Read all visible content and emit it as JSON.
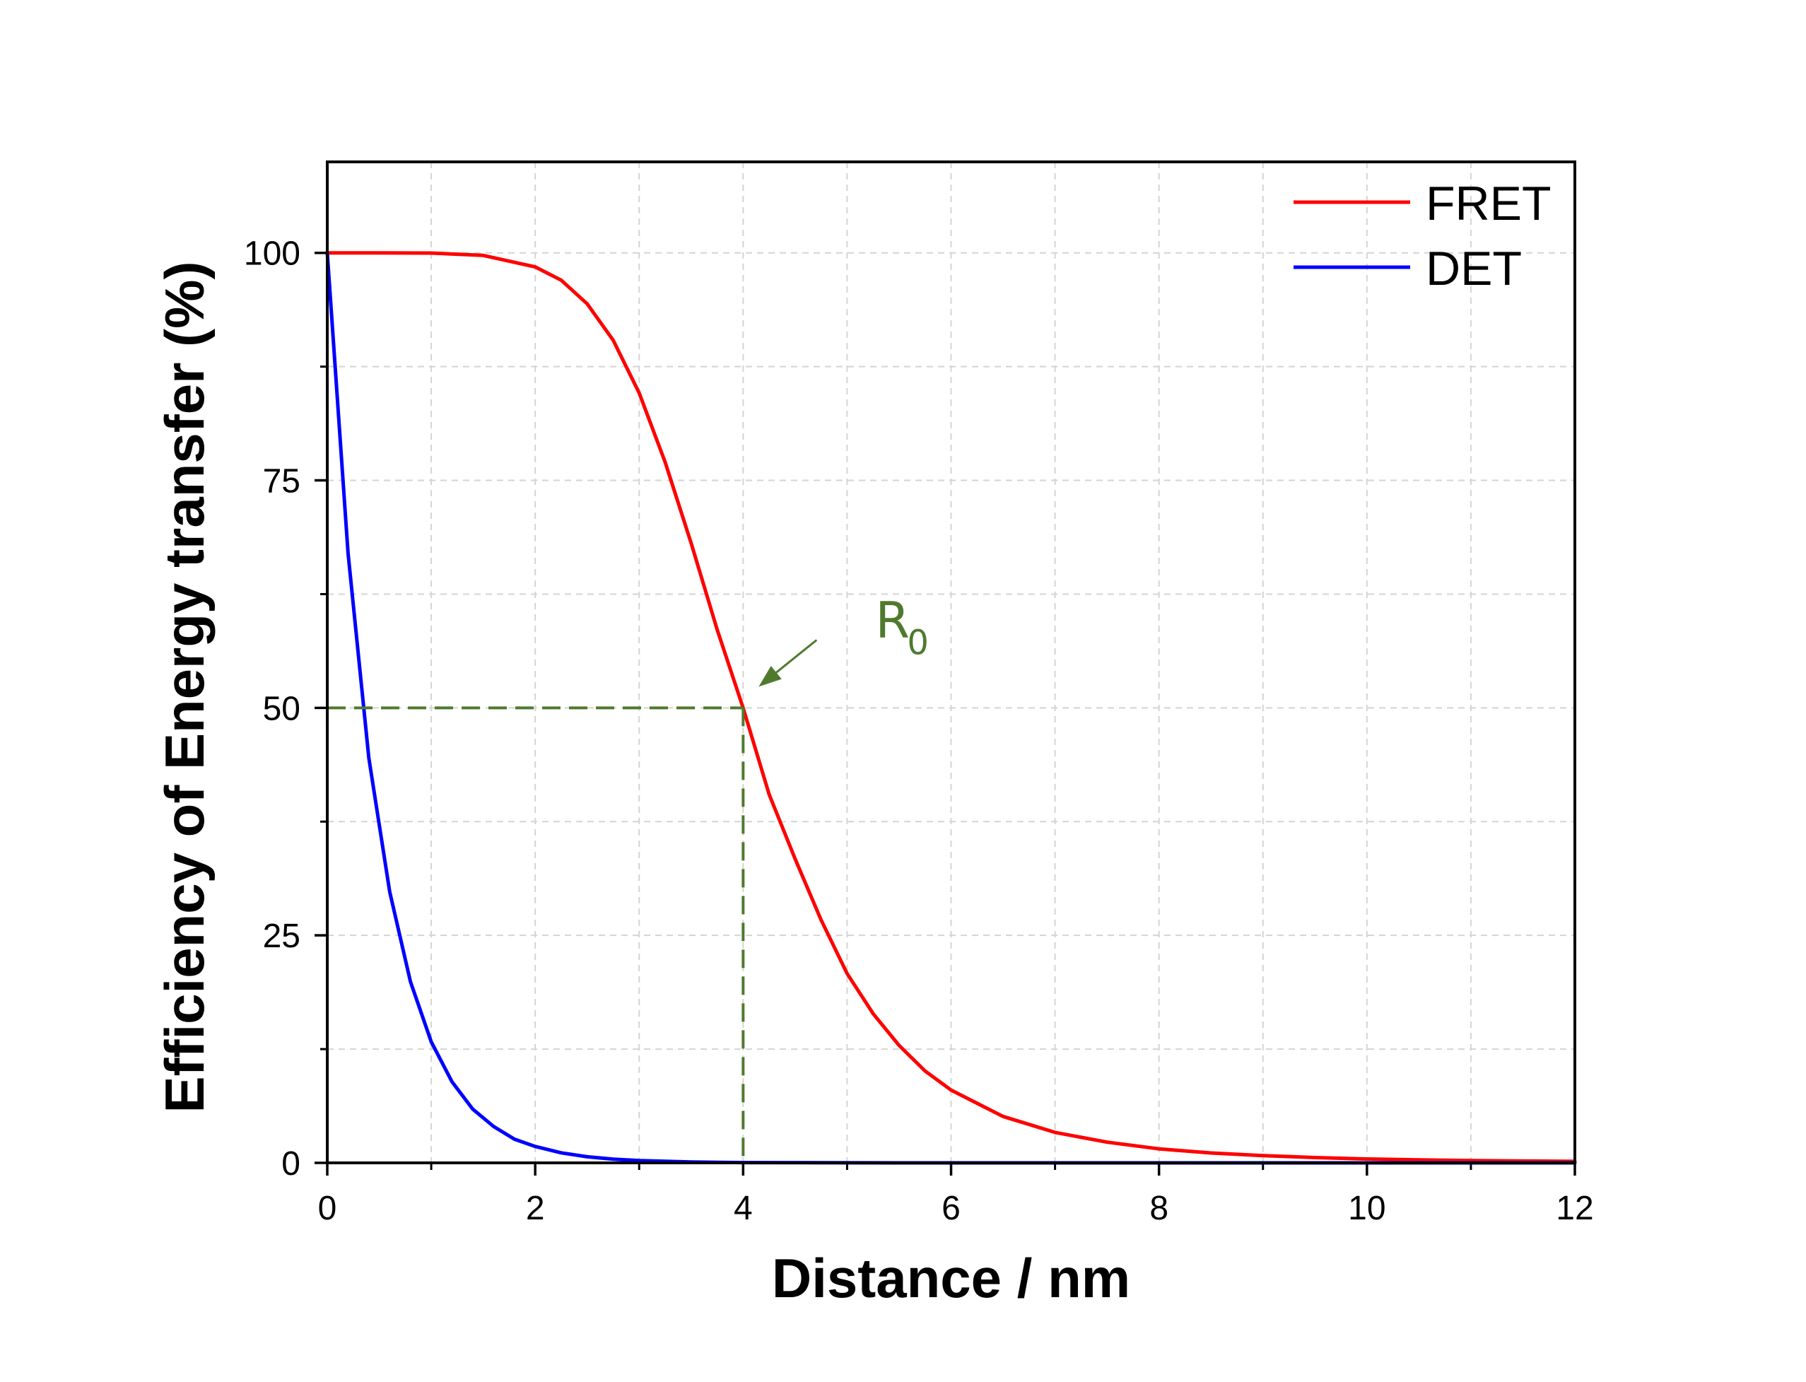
{
  "chart_data": {
    "type": "line",
    "xlabel": "Distance / nm",
    "ylabel": "Efficiency of Energy transfer (%)",
    "xlim": [
      0,
      12
    ],
    "ylim": [
      0,
      110
    ],
    "x_ticks": [
      0,
      2,
      4,
      6,
      8,
      10,
      12
    ],
    "x_tick_labels": [
      "0",
      "2",
      "4",
      "6",
      "8",
      "10",
      "12"
    ],
    "y_ticks": [
      0,
      25,
      50,
      75,
      100
    ],
    "y_tick_labels": [
      "0",
      "25",
      "50",
      "75",
      "100"
    ],
    "x_minor_ticks": [
      1,
      3,
      5,
      7,
      9,
      11
    ],
    "y_minor_ticks": [
      12.5,
      37.5,
      62.5,
      87.5
    ],
    "grid": true,
    "legend": "top-right",
    "series": [
      {
        "name": "FRET",
        "color": "#ff0000",
        "x": [
          0,
          0.5,
          1.0,
          1.5,
          2.0,
          2.25,
          2.5,
          2.75,
          3.0,
          3.25,
          3.5,
          3.75,
          4.0,
          4.25,
          4.5,
          4.75,
          5.0,
          5.25,
          5.5,
          5.75,
          6.0,
          6.5,
          7.0,
          7.5,
          8.0,
          8.5,
          9.0,
          9.5,
          10.0,
          10.5,
          11.0,
          11.5,
          12.0
        ],
        "y": [
          100,
          100,
          99.98,
          99.72,
          98.46,
          97.0,
          94.4,
          90.4,
          84.6,
          77.0,
          68.1,
          58.6,
          50.0,
          40.5,
          33.4,
          26.7,
          20.8,
          16.4,
          12.9,
          10.1,
          8.0,
          5.1,
          3.35,
          2.28,
          1.54,
          1.09,
          0.79,
          0.58,
          0.43,
          0.33,
          0.26,
          0.2,
          0.16
        ]
      },
      {
        "name": "DET",
        "color": "#0000ff",
        "x": [
          0,
          0.2,
          0.4,
          0.6,
          0.8,
          1.0,
          1.2,
          1.4,
          1.6,
          1.8,
          2.0,
          2.25,
          2.5,
          2.75,
          3.0,
          3.5,
          4.0,
          5.0,
          6.0,
          8.0,
          10.0,
          12.0
        ],
        "y": [
          100,
          67,
          44.5,
          29.8,
          19.9,
          13.3,
          8.9,
          5.9,
          4.0,
          2.6,
          1.8,
          1.1,
          0.67,
          0.41,
          0.25,
          0.09,
          0.03,
          0.005,
          0,
          0,
          0,
          0
        ]
      }
    ],
    "annotations": [
      {
        "label": "R",
        "subscript": "0",
        "color": "#4f7a2e",
        "point": [
          4,
          50
        ],
        "dashed_guides": true
      }
    ]
  }
}
